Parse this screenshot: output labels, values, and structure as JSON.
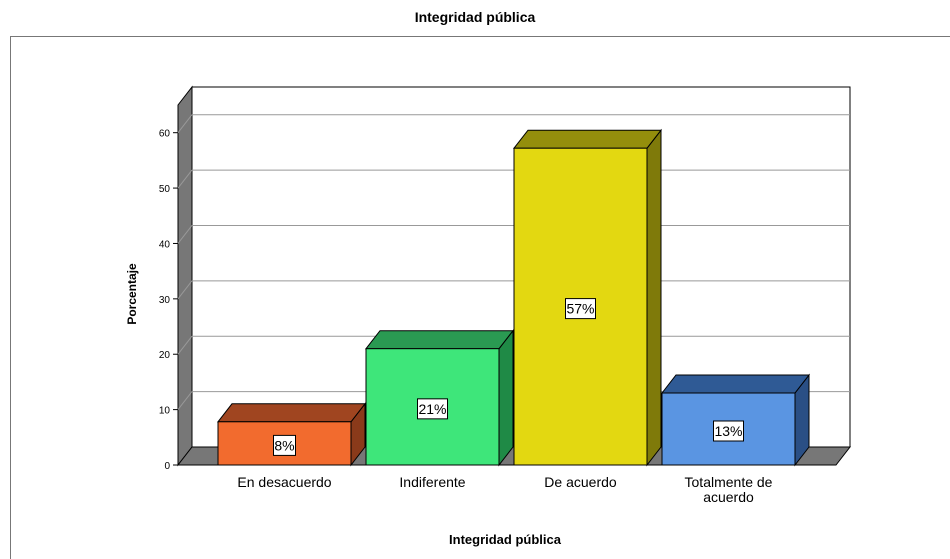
{
  "chart_data": {
    "type": "bar",
    "title": "Integridad pública",
    "xlabel": "Integridad pública",
    "ylabel": "Porcentaje",
    "ylim": [
      0,
      65
    ],
    "yticks": [
      0,
      10,
      20,
      30,
      40,
      50,
      60
    ],
    "grid": true,
    "categories": [
      "En desacuerdo",
      "Indiferente",
      "De acuerdo",
      "Totalmente de acuerdo"
    ],
    "category_lines": [
      [
        "En desacuerdo"
      ],
      [
        "Indiferente"
      ],
      [
        "De acuerdo"
      ],
      [
        "Totalmente de",
        "acuerdo"
      ]
    ],
    "values": [
      7.8,
      21.0,
      57.2,
      13.0
    ],
    "data_labels": [
      "8%",
      "21%",
      "57%",
      "13%"
    ],
    "colors": [
      {
        "front": "#f26b2e",
        "top": "#a04520",
        "side": "#8a3a1a"
      },
      {
        "front": "#3ee67a",
        "top": "#2a9a52",
        "side": "#1f8a46"
      },
      {
        "front": "#e3d811",
        "top": "#948e0c",
        "side": "#7f7a0a"
      },
      {
        "front": "#5a95e2",
        "top": "#2f5a95",
        "side": "#2a4f85"
      }
    ]
  }
}
